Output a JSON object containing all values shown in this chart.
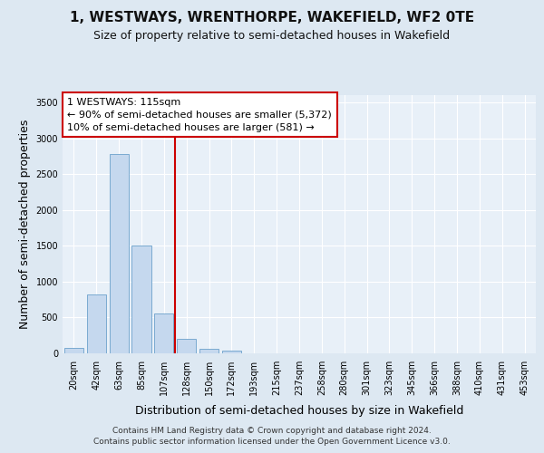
{
  "title": "1, WESTWAYS, WRENTHORPE, WAKEFIELD, WF2 0TE",
  "subtitle": "Size of property relative to semi-detached houses in Wakefield",
  "xlabel": "Distribution of semi-detached houses by size in Wakefield",
  "ylabel": "Number of semi-detached properties",
  "footer_line1": "Contains HM Land Registry data © Crown copyright and database right 2024.",
  "footer_line2": "Contains public sector information licensed under the Open Government Licence v3.0.",
  "categories": [
    "20sqm",
    "42sqm",
    "63sqm",
    "85sqm",
    "107sqm",
    "128sqm",
    "150sqm",
    "172sqm",
    "193sqm",
    "215sqm",
    "237sqm",
    "258sqm",
    "280sqm",
    "301sqm",
    "323sqm",
    "345sqm",
    "366sqm",
    "388sqm",
    "410sqm",
    "431sqm",
    "453sqm"
  ],
  "values": [
    80,
    820,
    2780,
    1500,
    560,
    200,
    65,
    35,
    0,
    0,
    0,
    0,
    0,
    0,
    0,
    0,
    0,
    0,
    0,
    0,
    0
  ],
  "bar_color": "#c5d8ee",
  "bar_edge_color": "#7aaad0",
  "property_line_color": "#cc0000",
  "property_line_x": 5,
  "annotation_line1": "1 WESTWAYS: 115sqm",
  "annotation_line2": "← 90% of semi-detached houses are smaller (5,372)",
  "annotation_line3": "10% of semi-detached houses are larger (581) →",
  "ylim_max": 3600,
  "yticks": [
    0,
    500,
    1000,
    1500,
    2000,
    2500,
    3000,
    3500
  ],
  "bg_color": "#dde8f2",
  "plot_bg_color": "#e8f0f8",
  "grid_color": "#ffffff",
  "title_fontsize": 11,
  "subtitle_fontsize": 9,
  "axis_label_fontsize": 9,
  "tick_fontsize": 7,
  "annotation_fontsize": 8,
  "footer_fontsize": 6.5,
  "bar_width": 0.85
}
